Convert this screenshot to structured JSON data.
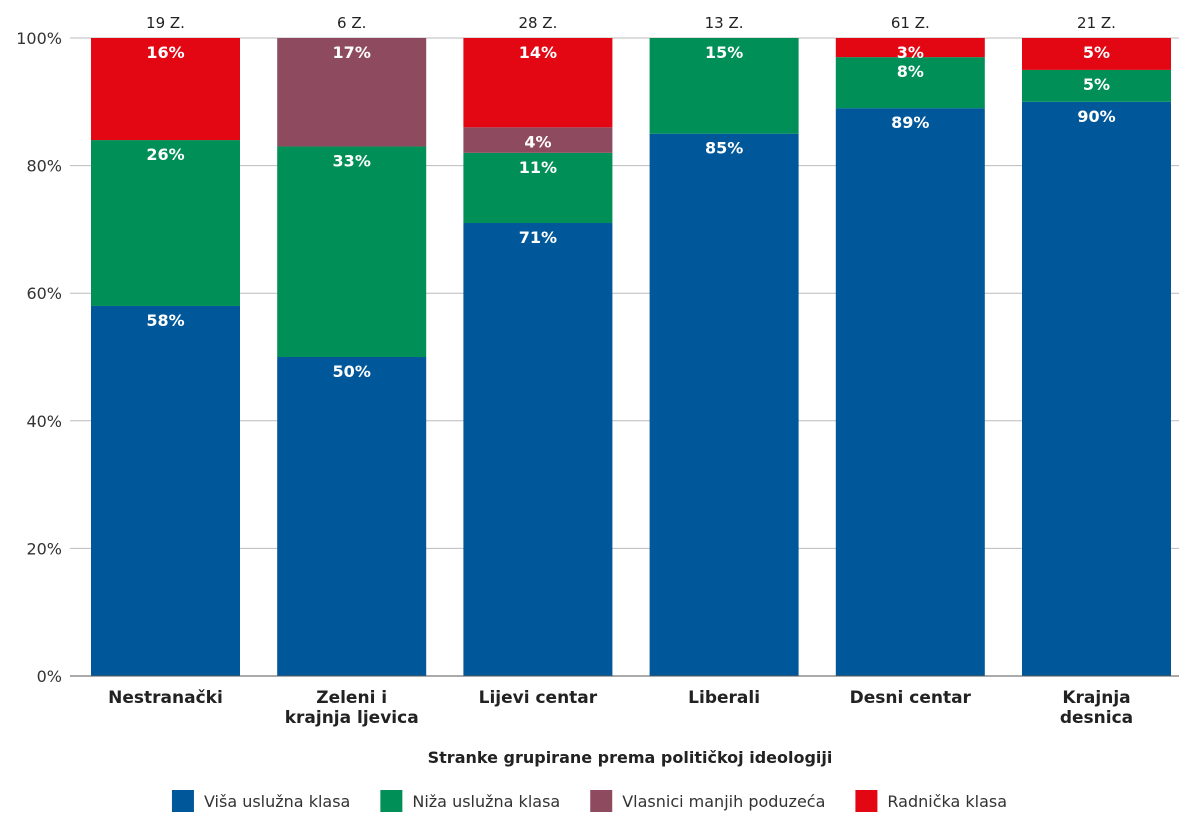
{
  "chart_data": {
    "type": "bar",
    "stacked": true,
    "percent_stacked": true,
    "title": "",
    "xlabel": "Stranke grupirane prema političkoj ideologiji",
    "ylabel": "",
    "ylim": [
      0,
      100
    ],
    "yticks": [
      "0%",
      "20%",
      "40%",
      "60%",
      "80%",
      "100%"
    ],
    "ytick_values": [
      0,
      20,
      40,
      60,
      80,
      100
    ],
    "grid": true,
    "legend_position": "bottom",
    "categories": [
      [
        "Nestranački"
      ],
      [
        "Zeleni i",
        "krajnja ljevica"
      ],
      [
        "Lijevi centar"
      ],
      [
        "Liberali"
      ],
      [
        "Desni centar"
      ],
      [
        "Krajnja",
        "desnica"
      ]
    ],
    "top_labels": [
      "19 Z.",
      "6 Z.",
      "28 Z.",
      "13 Z.",
      "61 Z.",
      "21 Z."
    ],
    "series": [
      {
        "name": "Viša uslužna klasa",
        "color": "#00579a",
        "values": [
          58,
          50,
          71,
          85,
          89,
          90
        ],
        "labels": [
          "58%",
          "50%",
          "71%",
          "85%",
          "89%",
          "90%"
        ]
      },
      {
        "name": "Niža uslužna klasa",
        "color": "#008f56",
        "values": [
          26,
          33,
          11,
          15,
          8,
          5
        ],
        "labels": [
          "26%",
          "33%",
          "11%",
          "15%",
          "8%",
          "5%"
        ]
      },
      {
        "name": "Vlasnici manjih poduzeća",
        "color": "#8e4b60",
        "values": [
          0,
          17,
          4,
          0,
          0,
          0
        ],
        "labels": [
          "",
          "17%",
          "4%",
          "",
          "",
          ""
        ]
      },
      {
        "name": "Radnička klasa",
        "color": "#e30613",
        "values": [
          16,
          0,
          14,
          0,
          3,
          5
        ],
        "labels": [
          "16%",
          "",
          "14%",
          "",
          "3%",
          "5%"
        ]
      }
    ]
  }
}
